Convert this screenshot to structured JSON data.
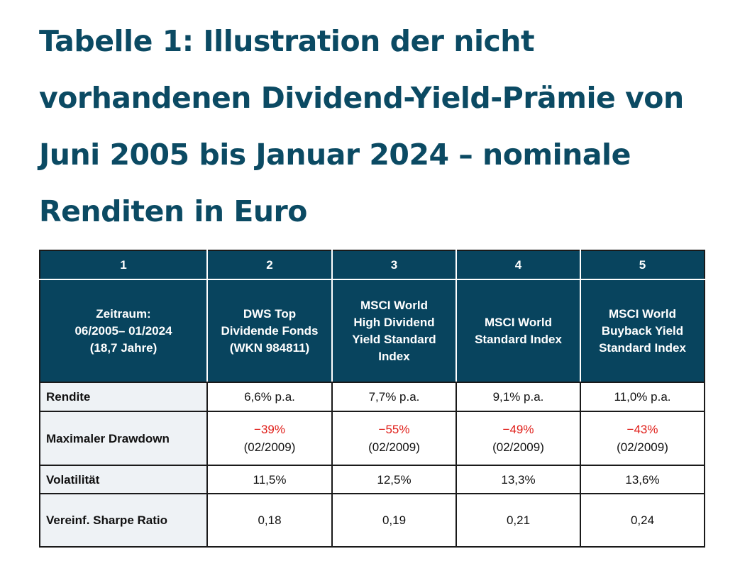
{
  "title": "Tabelle 1: Illustration der nicht vorhandenen Dividend-Yield-Prämie von Juni 2005 bis Januar 2024 – nominale Renditen in Euro",
  "columns": [
    "1",
    "2",
    "3",
    "4",
    "5"
  ],
  "headers": [
    "Zeitraum:\n06/2005– 01/2024\n(18,7 Jahre)",
    "DWS Top\nDividende Fonds\n(WKN 984811)",
    "MSCI World\nHigh Dividend\nYield Standard\nIndex",
    "MSCI World\nStandard Index",
    "MSCI World\nBuyback Yield\nStandard Index"
  ],
  "rows": [
    {
      "label": "Rendite",
      "values": [
        "6,6% p.a.",
        "7,7% p.a.",
        "9,1% p.a.",
        "11,0% p.a."
      ]
    },
    {
      "label": "Maximaler Drawdown",
      "values": [
        "−39%",
        "−55%",
        "−49%",
        "−43%"
      ],
      "dates": [
        "(02/2009)",
        "(02/2009)",
        "(02/2009)",
        "(02/2009)"
      ]
    },
    {
      "label": "Volatilität",
      "values": [
        "11,5%",
        "12,5%",
        "13,3%",
        "13,6%"
      ]
    },
    {
      "label": "Vereinf. Sharpe Ratio",
      "values": [
        "0,18",
        "0,19",
        "0,21",
        "0,24"
      ]
    }
  ],
  "colors": {
    "header": "#08445e",
    "title": "#0b4a63",
    "negative": "#e0201b",
    "label_bg": "#eef2f5"
  }
}
